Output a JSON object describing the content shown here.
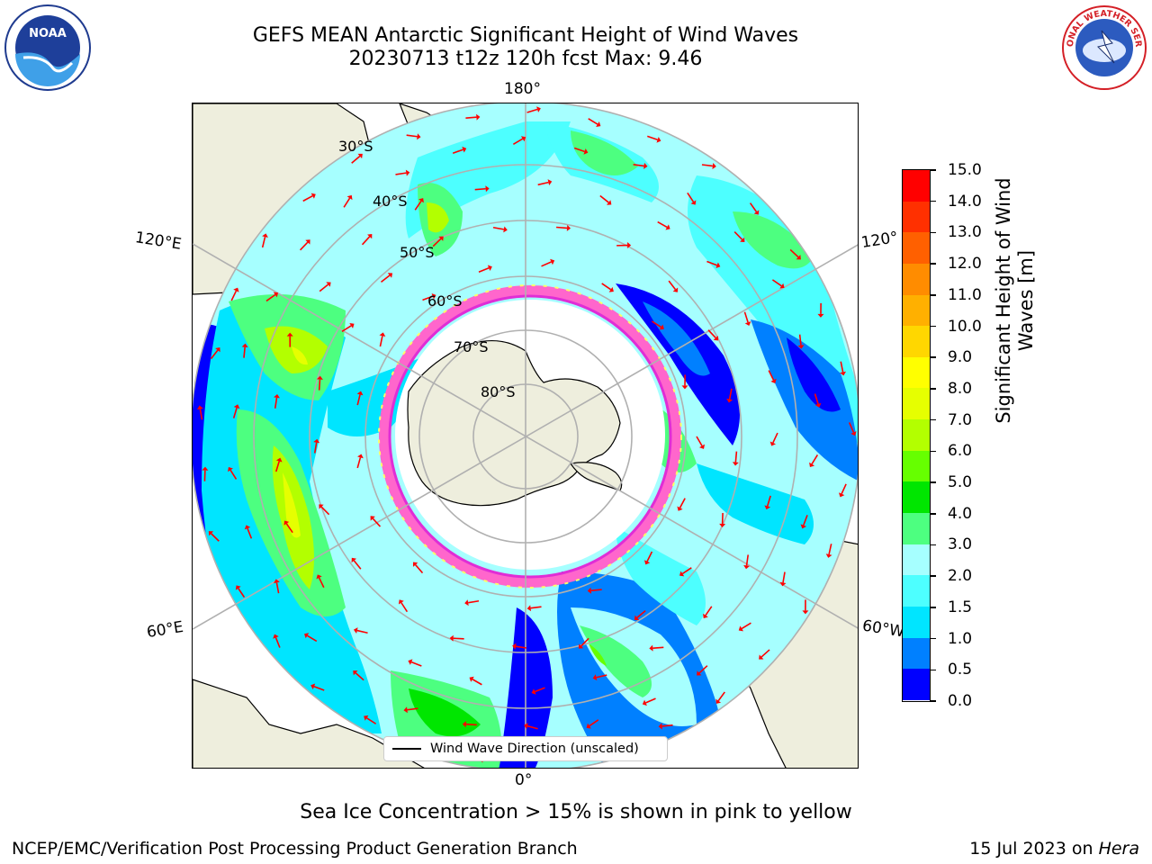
{
  "title": {
    "line1": "GEFS MEAN Antarctic Significant Height of Wind Waves",
    "line2": "20230713 t12z 120h fcst   Max: 9.46"
  },
  "longitude_labels": {
    "top": "180°",
    "bottom": "0°",
    "upper_left": "120°E",
    "upper_right": "120°",
    "lower_left": "60°E",
    "lower_right": "60°W"
  },
  "latitude_labels": [
    "30°S",
    "40°S",
    "50°S",
    "60°S",
    "70°S",
    "80°S"
  ],
  "map_legend": "Wind Wave Direction (unscaled)",
  "colorbar": {
    "label_line1": "Significant Height of Wind",
    "label_line2": "Waves [m]",
    "ticks": [
      "0.0",
      "0.5",
      "1.0",
      "1.5",
      "2.0",
      "3.0",
      "4.0",
      "5.0",
      "6.0",
      "7.0",
      "8.0",
      "9.0",
      "10.0",
      "11.0",
      "12.0",
      "13.0",
      "14.0",
      "15.0"
    ],
    "colors": [
      "#0000ff",
      "#0080ff",
      "#00e5ff",
      "#4dffff",
      "#a6ffff",
      "#4dff80",
      "#00e600",
      "#66ff00",
      "#b3ff00",
      "#e6ff00",
      "#ffff00",
      "#ffd700",
      "#ffb000",
      "#ff8c00",
      "#ff6000",
      "#ff3000",
      "#ff0000"
    ]
  },
  "colors": {
    "land": "#eeeedd",
    "sea_ice_low": "#ff66cc",
    "sea_ice_high": "#ffff66",
    "arrow": "#ff0000",
    "grid": "#b0b0b0"
  },
  "note": "Sea Ice Concentration > 15% is shown in pink to yellow",
  "footer": {
    "left": "NCEP/EMC/Verification Post Processing Product Generation Branch",
    "right_prefix": "15 Jul 2023 on ",
    "right_host": "Hera"
  },
  "logos": {
    "left": "NOAA",
    "right": "NATIONAL WEATHER SERVICE"
  }
}
